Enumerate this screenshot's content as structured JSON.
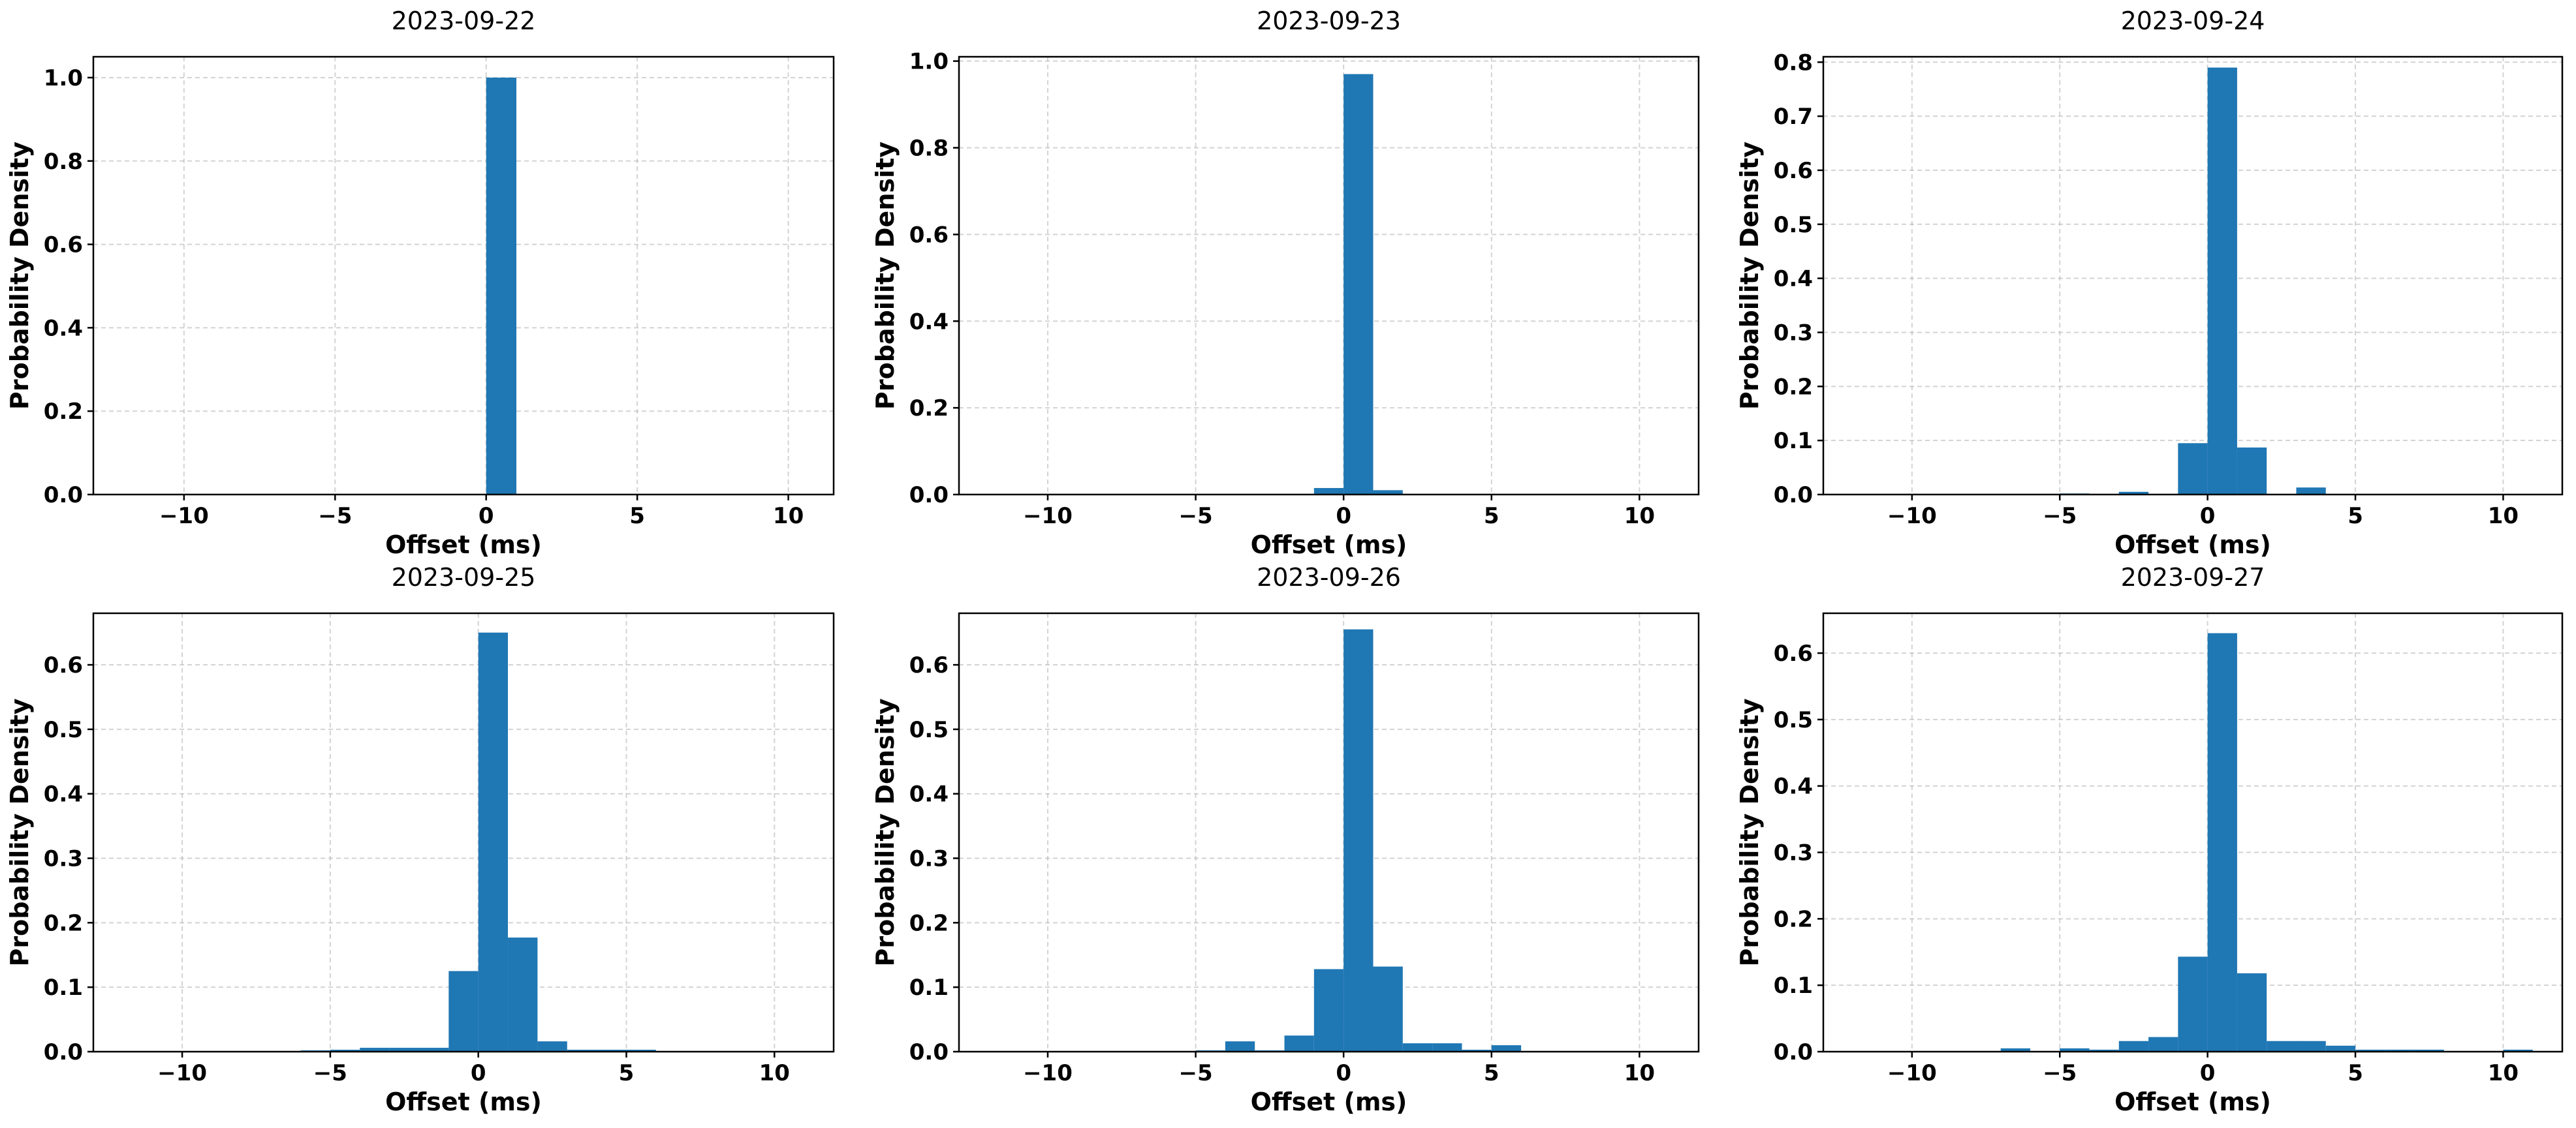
{
  "colors": {
    "bar": "#1f77b4",
    "background": "#ffffff",
    "axes": "#000000",
    "grid": "#b0b0b0"
  },
  "chart_data": [
    {
      "type": "bar",
      "title": "2023-09-22",
      "xlabel": "Offset (ms)",
      "ylabel": "Probability Density",
      "xlim": [
        -13,
        11.5
      ],
      "ylim": [
        0,
        1.05
      ],
      "xticks": [
        -10,
        -5,
        0,
        5,
        10
      ],
      "xtick_labels": [
        "−10",
        "−5",
        "0",
        "5",
        "10"
      ],
      "yticks": [
        0,
        0.2,
        0.4,
        0.6,
        0.8,
        1.0
      ],
      "ytick_labels": [
        "0.0",
        "0.2",
        "0.4",
        "0.6",
        "0.8",
        "1.0"
      ],
      "grid": true,
      "bins": [
        {
          "x0": 0,
          "x1": 1,
          "value": 1.0
        }
      ]
    },
    {
      "type": "bar",
      "title": "2023-09-23",
      "xlabel": "Offset (ms)",
      "ylabel": "Probability Density",
      "xlim": [
        -13,
        12
      ],
      "ylim": [
        0,
        1.01
      ],
      "xticks": [
        -10,
        -5,
        0,
        5,
        10
      ],
      "xtick_labels": [
        "−10",
        "−5",
        "0",
        "5",
        "10"
      ],
      "yticks": [
        0,
        0.2,
        0.4,
        0.6,
        0.8,
        1.0
      ],
      "ytick_labels": [
        "0.0",
        "0.2",
        "0.4",
        "0.6",
        "0.8",
        "1.0"
      ],
      "grid": true,
      "bins": [
        {
          "x0": -1,
          "x1": 0,
          "value": 0.015
        },
        {
          "x0": 0,
          "x1": 1,
          "value": 0.97
        },
        {
          "x0": 1,
          "x1": 2,
          "value": 0.01
        }
      ]
    },
    {
      "type": "bar",
      "title": "2023-09-24",
      "xlabel": "Offset (ms)",
      "ylabel": "Probability Density",
      "xlim": [
        -13,
        12
      ],
      "ylim": [
        0,
        0.81
      ],
      "xticks": [
        -10,
        -5,
        0,
        5,
        10
      ],
      "xtick_labels": [
        "−10",
        "−5",
        "0",
        "5",
        "10"
      ],
      "yticks": [
        0,
        0.1,
        0.2,
        0.3,
        0.4,
        0.5,
        0.6,
        0.7,
        0.8
      ],
      "ytick_labels": [
        "0.0",
        "0.1",
        "0.2",
        "0.3",
        "0.4",
        "0.5",
        "0.6",
        "0.7",
        "0.8"
      ],
      "grid": true,
      "bins": [
        {
          "x0": -5,
          "x1": -4,
          "value": 0.002
        },
        {
          "x0": -3,
          "x1": -2,
          "value": 0.005
        },
        {
          "x0": -1,
          "x1": 0,
          "value": 0.095
        },
        {
          "x0": 0,
          "x1": 1,
          "value": 0.79
        },
        {
          "x0": 1,
          "x1": 2,
          "value": 0.087
        },
        {
          "x0": 3,
          "x1": 4,
          "value": 0.013
        }
      ]
    },
    {
      "type": "bar",
      "title": "2023-09-25",
      "xlabel": "Offset (ms)",
      "ylabel": "Probability Density",
      "xlim": [
        -13,
        12
      ],
      "ylim": [
        0,
        0.68
      ],
      "xticks": [
        -10,
        -5,
        0,
        5,
        10
      ],
      "xtick_labels": [
        "−10",
        "−5",
        "0",
        "5",
        "10"
      ],
      "yticks": [
        0,
        0.1,
        0.2,
        0.3,
        0.4,
        0.5,
        0.6
      ],
      "ytick_labels": [
        "0.0",
        "0.1",
        "0.2",
        "0.3",
        "0.4",
        "0.5",
        "0.6"
      ],
      "grid": true,
      "bins": [
        {
          "x0": -6,
          "x1": -5,
          "value": 0.002
        },
        {
          "x0": -5,
          "x1": -4,
          "value": 0.003
        },
        {
          "x0": -4,
          "x1": -3,
          "value": 0.006
        },
        {
          "x0": -3,
          "x1": -2,
          "value": 0.006
        },
        {
          "x0": -2,
          "x1": -1,
          "value": 0.006
        },
        {
          "x0": -1,
          "x1": 0,
          "value": 0.125
        },
        {
          "x0": 0,
          "x1": 1,
          "value": 0.65
        },
        {
          "x0": 1,
          "x1": 2,
          "value": 0.177
        },
        {
          "x0": 2,
          "x1": 3,
          "value": 0.016
        },
        {
          "x0": 3,
          "x1": 4,
          "value": 0.003
        },
        {
          "x0": 4,
          "x1": 5,
          "value": 0.003
        },
        {
          "x0": 5,
          "x1": 6,
          "value": 0.003
        }
      ]
    },
    {
      "type": "bar",
      "title": "2023-09-26",
      "xlabel": "Offset (ms)",
      "ylabel": "Probability Density",
      "xlim": [
        -13,
        12
      ],
      "ylim": [
        0,
        0.68
      ],
      "xticks": [
        -10,
        -5,
        0,
        5,
        10
      ],
      "xtick_labels": [
        "−10",
        "−5",
        "0",
        "5",
        "10"
      ],
      "yticks": [
        0,
        0.1,
        0.2,
        0.3,
        0.4,
        0.5,
        0.6
      ],
      "ytick_labels": [
        "0.0",
        "0.1",
        "0.2",
        "0.3",
        "0.4",
        "0.5",
        "0.6"
      ],
      "grid": true,
      "bins": [
        {
          "x0": -5,
          "x1": -4,
          "value": 0.002
        },
        {
          "x0": -4,
          "x1": -3,
          "value": 0.016
        },
        {
          "x0": -3,
          "x1": -2,
          "value": 0.002
        },
        {
          "x0": -2,
          "x1": -1,
          "value": 0.025
        },
        {
          "x0": -1,
          "x1": 0,
          "value": 0.128
        },
        {
          "x0": 0,
          "x1": 1,
          "value": 0.655
        },
        {
          "x0": 1,
          "x1": 2,
          "value": 0.132
        },
        {
          "x0": 2,
          "x1": 3,
          "value": 0.013
        },
        {
          "x0": 3,
          "x1": 4,
          "value": 0.013
        },
        {
          "x0": 4,
          "x1": 5,
          "value": 0.003
        },
        {
          "x0": 5,
          "x1": 6,
          "value": 0.01
        }
      ]
    },
    {
      "type": "bar",
      "title": "2023-09-27",
      "xlabel": "Offset (ms)",
      "ylabel": "Probability Density",
      "xlim": [
        -13,
        12
      ],
      "ylim": [
        0,
        0.66
      ],
      "xticks": [
        -10,
        -5,
        0,
        5,
        10
      ],
      "xtick_labels": [
        "−10",
        "−5",
        "0",
        "5",
        "10"
      ],
      "yticks": [
        0,
        0.1,
        0.2,
        0.3,
        0.4,
        0.5,
        0.6
      ],
      "ytick_labels": [
        "0.0",
        "0.1",
        "0.2",
        "0.3",
        "0.4",
        "0.5",
        "0.6"
      ],
      "grid": true,
      "bins": [
        {
          "x0": -7,
          "x1": -6,
          "value": 0.005
        },
        {
          "x0": -5,
          "x1": -4,
          "value": 0.005
        },
        {
          "x0": -4,
          "x1": -3,
          "value": 0.003
        },
        {
          "x0": -3,
          "x1": -2,
          "value": 0.016
        },
        {
          "x0": -2,
          "x1": -1,
          "value": 0.022
        },
        {
          "x0": -1,
          "x1": 0,
          "value": 0.143
        },
        {
          "x0": 0,
          "x1": 1,
          "value": 0.63
        },
        {
          "x0": 1,
          "x1": 2,
          "value": 0.118
        },
        {
          "x0": 2,
          "x1": 3,
          "value": 0.016
        },
        {
          "x0": 3,
          "x1": 4,
          "value": 0.016
        },
        {
          "x0": 4,
          "x1": 5,
          "value": 0.009
        },
        {
          "x0": 5,
          "x1": 6,
          "value": 0.003
        },
        {
          "x0": 6,
          "x1": 7,
          "value": 0.003
        },
        {
          "x0": 7,
          "x1": 8,
          "value": 0.003
        },
        {
          "x0": 10,
          "x1": 11,
          "value": 0.003
        }
      ]
    }
  ]
}
